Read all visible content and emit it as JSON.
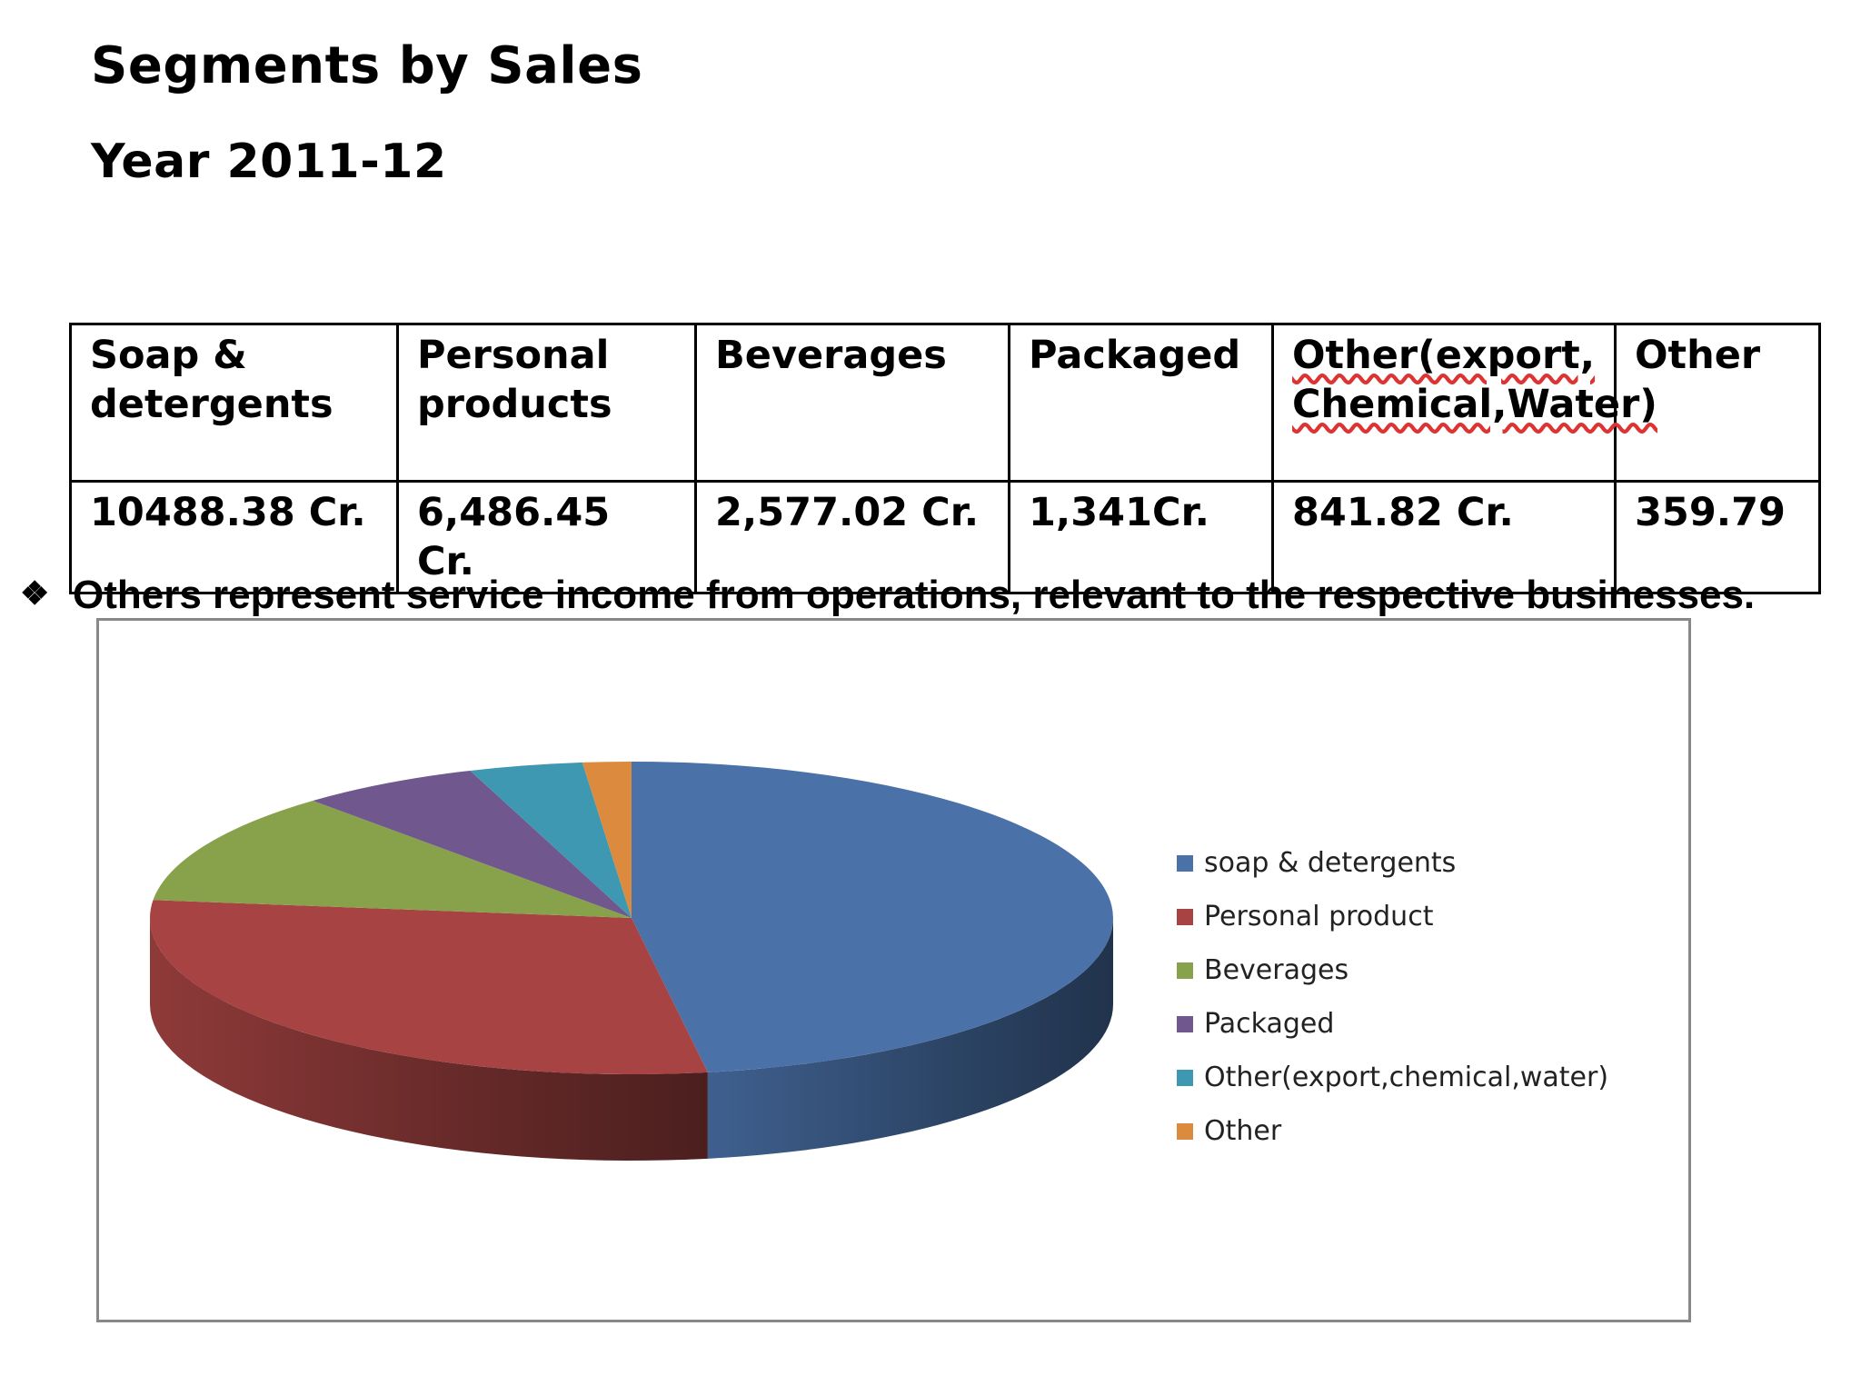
{
  "title": "Segments by Sales",
  "subtitle": "Year 2011-12",
  "table": {
    "headers": [
      "Soap & detergents",
      "Personal products",
      "Beverages",
      "Packaged",
      "Other(export, Chemical,Water)",
      "Other"
    ],
    "values": [
      "10488.38 Cr.",
      "6,486.45 Cr.",
      "2,577.02 Cr.",
      "1,341Cr.",
      "841.82 Cr.",
      "359.79"
    ]
  },
  "note": {
    "bullet": "❖",
    "text": "Others represent service income from operations, relevant to the respective businesses."
  },
  "chart_data": {
    "type": "pie",
    "style": "3d",
    "legend_position": "right",
    "categories": [
      "soap & detergents",
      "Personal product",
      "Beverages",
      "Packaged",
      "Other(export,chemical,water)",
      "Other"
    ],
    "values": [
      10488.38,
      6486.45,
      2577.02,
      1341,
      841.82,
      359.79
    ],
    "colors": [
      "#4a71a8",
      "#a74443",
      "#88a24b",
      "#70578e",
      "#3f98b1",
      "#dc8a3e"
    ]
  }
}
